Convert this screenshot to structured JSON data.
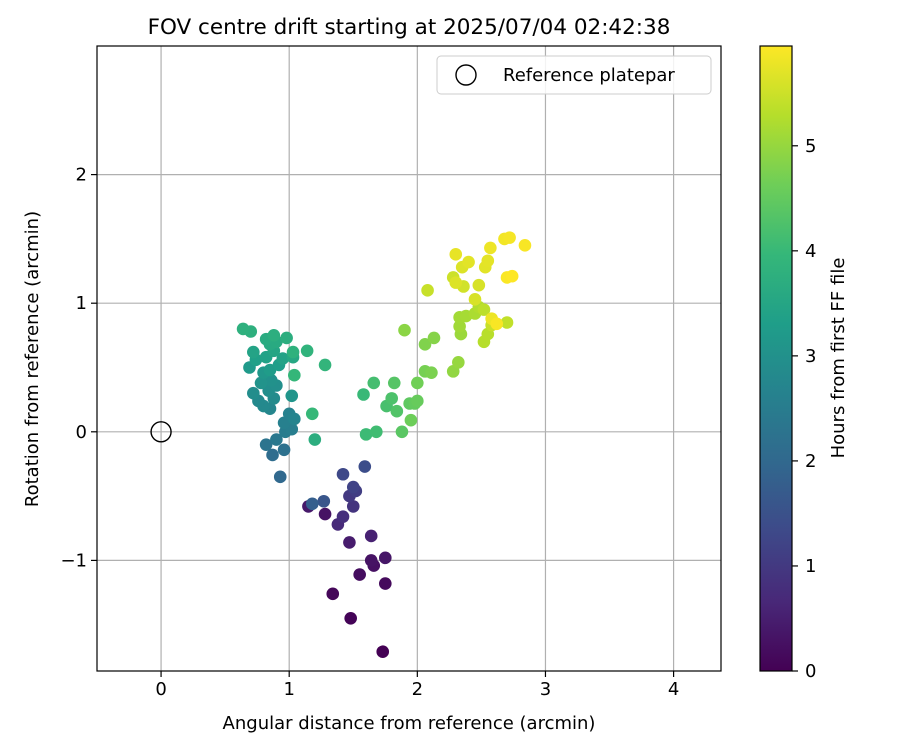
{
  "chart_data": {
    "type": "scatter",
    "title": "FOV centre drift starting at 2025/07/04 02:42:38",
    "xlabel": "Angular distance from reference (arcmin)",
    "ylabel": "Rotation from reference (arcmin)",
    "xlim": [
      -0.5,
      4.37
    ],
    "ylim": [
      -1.86,
      3.0
    ],
    "xticks": [
      0,
      1,
      2,
      3,
      4
    ],
    "yticks": [
      -1,
      0,
      1,
      2
    ],
    "x_tick_labels": [
      "0",
      "1",
      "2",
      "3",
      "4"
    ],
    "y_tick_labels": [
      "−1",
      "0",
      "1",
      "2"
    ],
    "grid": true,
    "legend": {
      "placement": "top-right",
      "entries": [
        "Reference platepar"
      ]
    },
    "reference_point": {
      "x": 0,
      "y": 0
    },
    "colorbar": {
      "label": "Hours from first FF file",
      "colormap": "viridis",
      "range": [
        0,
        5.95
      ],
      "ticks": [
        0,
        1,
        2,
        3,
        4,
        5
      ],
      "tick_labels": [
        "0",
        "1",
        "2",
        "3",
        "4",
        "5"
      ]
    },
    "colormap_stops": [
      "#440154",
      "#482878",
      "#3e4989",
      "#31688e",
      "#26828e",
      "#1f9e89",
      "#35b779",
      "#6ece58",
      "#b5de2b",
      "#fde725"
    ],
    "points": [
      {
        "x": 1.73,
        "y": -1.71,
        "h": 0.0
      },
      {
        "x": 1.48,
        "y": -1.45,
        "h": 0.05
      },
      {
        "x": 1.34,
        "y": -1.26,
        "h": 0.1
      },
      {
        "x": 1.75,
        "y": -1.18,
        "h": 0.15
      },
      {
        "x": 1.55,
        "y": -1.11,
        "h": 0.2
      },
      {
        "x": 1.66,
        "y": -1.04,
        "h": 0.25
      },
      {
        "x": 1.64,
        "y": -1.0,
        "h": 0.3
      },
      {
        "x": 1.75,
        "y": -0.98,
        "h": 0.35
      },
      {
        "x": 1.47,
        "y": -0.86,
        "h": 0.45
      },
      {
        "x": 1.64,
        "y": -0.81,
        "h": 0.55
      },
      {
        "x": 1.28,
        "y": -0.64,
        "h": 0.3
      },
      {
        "x": 1.15,
        "y": -0.58,
        "h": 0.4
      },
      {
        "x": 1.38,
        "y": -0.72,
        "h": 0.7
      },
      {
        "x": 1.42,
        "y": -0.66,
        "h": 0.8
      },
      {
        "x": 1.5,
        "y": -0.58,
        "h": 0.9
      },
      {
        "x": 1.47,
        "y": -0.5,
        "h": 1.0
      },
      {
        "x": 1.52,
        "y": -0.46,
        "h": 1.1
      },
      {
        "x": 1.5,
        "y": -0.43,
        "h": 1.2
      },
      {
        "x": 1.42,
        "y": -0.33,
        "h": 1.3
      },
      {
        "x": 1.59,
        "y": -0.27,
        "h": 1.4
      },
      {
        "x": 1.27,
        "y": -0.54,
        "h": 1.6
      },
      {
        "x": 1.18,
        "y": -0.56,
        "h": 1.8
      },
      {
        "x": 0.93,
        "y": -0.35,
        "h": 2.0
      },
      {
        "x": 0.87,
        "y": -0.18,
        "h": 2.1
      },
      {
        "x": 0.96,
        "y": -0.14,
        "h": 2.2
      },
      {
        "x": 0.82,
        "y": -0.1,
        "h": 2.3
      },
      {
        "x": 0.9,
        "y": -0.06,
        "h": 2.4
      },
      {
        "x": 0.97,
        "y": 0.0,
        "h": 2.5
      },
      {
        "x": 1.02,
        "y": 0.02,
        "h": 2.55
      },
      {
        "x": 0.96,
        "y": 0.07,
        "h": 2.6
      },
      {
        "x": 1.0,
        "y": 0.14,
        "h": 2.65
      },
      {
        "x": 1.04,
        "y": 0.1,
        "h": 2.7
      },
      {
        "x": 0.85,
        "y": 0.18,
        "h": 2.75
      },
      {
        "x": 0.8,
        "y": 0.2,
        "h": 2.8
      },
      {
        "x": 0.76,
        "y": 0.24,
        "h": 2.82
      },
      {
        "x": 0.88,
        "y": 0.26,
        "h": 2.85
      },
      {
        "x": 0.72,
        "y": 0.3,
        "h": 2.9
      },
      {
        "x": 0.84,
        "y": 0.32,
        "h": 2.92
      },
      {
        "x": 0.9,
        "y": 0.36,
        "h": 2.95
      },
      {
        "x": 0.86,
        "y": 0.4,
        "h": 3.0
      },
      {
        "x": 0.78,
        "y": 0.38,
        "h": 3.05
      },
      {
        "x": 1.02,
        "y": 0.28,
        "h": 3.1
      },
      {
        "x": 0.8,
        "y": 0.46,
        "h": 3.15
      },
      {
        "x": 0.69,
        "y": 0.5,
        "h": 3.2
      },
      {
        "x": 0.85,
        "y": 0.48,
        "h": 3.25
      },
      {
        "x": 0.92,
        "y": 0.52,
        "h": 3.3
      },
      {
        "x": 0.74,
        "y": 0.56,
        "h": 3.35
      },
      {
        "x": 0.82,
        "y": 0.58,
        "h": 3.4
      },
      {
        "x": 0.95,
        "y": 0.57,
        "h": 3.42
      },
      {
        "x": 0.72,
        "y": 0.62,
        "h": 3.45
      },
      {
        "x": 0.88,
        "y": 0.63,
        "h": 3.5
      },
      {
        "x": 1.03,
        "y": 0.58,
        "h": 3.55
      },
      {
        "x": 0.85,
        "y": 0.68,
        "h": 3.6
      },
      {
        "x": 0.9,
        "y": 0.7,
        "h": 3.62
      },
      {
        "x": 0.82,
        "y": 0.72,
        "h": 3.65
      },
      {
        "x": 0.98,
        "y": 0.73,
        "h": 3.7
      },
      {
        "x": 0.88,
        "y": 0.75,
        "h": 3.72
      },
      {
        "x": 0.7,
        "y": 0.78,
        "h": 3.75
      },
      {
        "x": 0.64,
        "y": 0.8,
        "h": 3.78
      },
      {
        "x": 1.03,
        "y": 0.62,
        "h": 3.8
      },
      {
        "x": 1.14,
        "y": 0.63,
        "h": 3.85
      },
      {
        "x": 1.28,
        "y": 0.52,
        "h": 3.9
      },
      {
        "x": 1.04,
        "y": 0.44,
        "h": 3.95
      },
      {
        "x": 1.18,
        "y": 0.14,
        "h": 3.98
      },
      {
        "x": 1.2,
        "y": -0.06,
        "h": 3.7
      },
      {
        "x": 1.58,
        "y": 0.29,
        "h": 4.0
      },
      {
        "x": 1.6,
        "y": -0.02,
        "h": 4.05
      },
      {
        "x": 1.68,
        "y": 0.0,
        "h": 4.1
      },
      {
        "x": 1.66,
        "y": 0.38,
        "h": 4.15
      },
      {
        "x": 1.76,
        "y": 0.2,
        "h": 4.2
      },
      {
        "x": 1.8,
        "y": 0.26,
        "h": 4.25
      },
      {
        "x": 1.84,
        "y": 0.16,
        "h": 4.3
      },
      {
        "x": 1.82,
        "y": 0.38,
        "h": 4.35
      },
      {
        "x": 1.88,
        "y": 0.0,
        "h": 4.4
      },
      {
        "x": 1.94,
        "y": 0.22,
        "h": 4.45
      },
      {
        "x": 1.98,
        "y": 0.22,
        "h": 4.5
      },
      {
        "x": 2.0,
        "y": 0.24,
        "h": 4.55
      },
      {
        "x": 1.95,
        "y": 0.09,
        "h": 4.6
      },
      {
        "x": 2.0,
        "y": 0.38,
        "h": 4.65
      },
      {
        "x": 2.06,
        "y": 0.47,
        "h": 4.7
      },
      {
        "x": 2.11,
        "y": 0.46,
        "h": 4.75
      },
      {
        "x": 2.06,
        "y": 0.68,
        "h": 4.8
      },
      {
        "x": 2.13,
        "y": 0.73,
        "h": 4.85
      },
      {
        "x": 1.9,
        "y": 0.79,
        "h": 4.9
      },
      {
        "x": 2.28,
        "y": 0.47,
        "h": 4.95
      },
      {
        "x": 2.32,
        "y": 0.54,
        "h": 5.0
      },
      {
        "x": 2.34,
        "y": 0.76,
        "h": 5.05
      },
      {
        "x": 2.33,
        "y": 0.82,
        "h": 5.1
      },
      {
        "x": 2.33,
        "y": 0.89,
        "h": 5.12
      },
      {
        "x": 2.38,
        "y": 0.9,
        "h": 5.15
      },
      {
        "x": 2.45,
        "y": 0.92,
        "h": 5.2
      },
      {
        "x": 2.48,
        "y": 0.97,
        "h": 5.25
      },
      {
        "x": 2.52,
        "y": 0.7,
        "h": 5.3
      },
      {
        "x": 2.55,
        "y": 0.76,
        "h": 5.32
      },
      {
        "x": 2.52,
        "y": 0.95,
        "h": 5.35
      },
      {
        "x": 2.7,
        "y": 0.85,
        "h": 5.4
      },
      {
        "x": 2.58,
        "y": 0.83,
        "h": 5.45
      },
      {
        "x": 2.08,
        "y": 1.1,
        "h": 5.45
      },
      {
        "x": 2.28,
        "y": 1.2,
        "h": 5.5
      },
      {
        "x": 2.36,
        "y": 1.13,
        "h": 5.55
      },
      {
        "x": 2.45,
        "y": 1.03,
        "h": 5.6
      },
      {
        "x": 2.48,
        "y": 1.14,
        "h": 5.6
      },
      {
        "x": 2.3,
        "y": 1.16,
        "h": 5.65
      },
      {
        "x": 2.35,
        "y": 1.28,
        "h": 5.65
      },
      {
        "x": 2.4,
        "y": 1.32,
        "h": 5.7
      },
      {
        "x": 2.53,
        "y": 1.28,
        "h": 5.7
      },
      {
        "x": 2.55,
        "y": 1.33,
        "h": 5.72
      },
      {
        "x": 2.3,
        "y": 1.38,
        "h": 5.75
      },
      {
        "x": 2.57,
        "y": 1.43,
        "h": 5.8
      },
      {
        "x": 2.68,
        "y": 1.5,
        "h": 5.85
      },
      {
        "x": 2.72,
        "y": 1.51,
        "h": 5.88
      },
      {
        "x": 2.84,
        "y": 1.45,
        "h": 5.9
      },
      {
        "x": 2.7,
        "y": 1.2,
        "h": 5.92
      },
      {
        "x": 2.74,
        "y": 1.21,
        "h": 5.95
      },
      {
        "x": 2.58,
        "y": 0.88,
        "h": 5.8
      },
      {
        "x": 2.62,
        "y": 0.84,
        "h": 5.9
      }
    ]
  }
}
